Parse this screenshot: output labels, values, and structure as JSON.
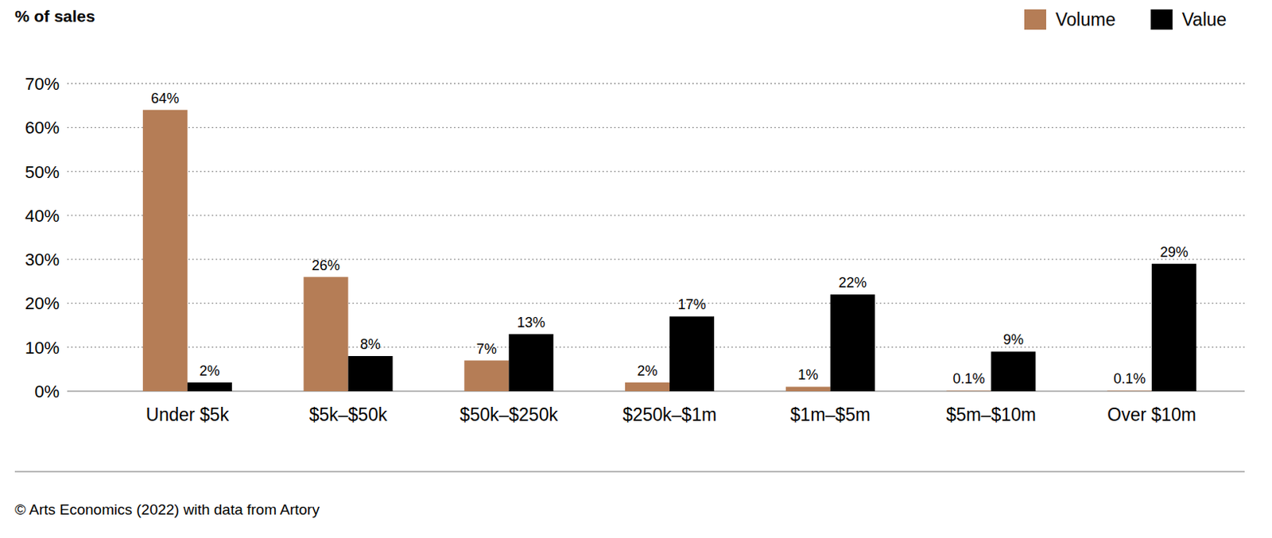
{
  "chart_data": {
    "type": "bar",
    "y_label": "% of sales",
    "source": "© Arts Economics (2022) with data from Artory",
    "categories": [
      "Under $5k",
      "$5k–$50k",
      "$50k–$250k",
      "$250k–$1m",
      "$1m–$5m",
      "$5m–$10m",
      "Over $10m"
    ],
    "series": [
      {
        "name": "Volume",
        "color": "#b57d56",
        "values": [
          64,
          26,
          7,
          2,
          1,
          0.1,
          0.1
        ],
        "value_labels": [
          "64%",
          "26%",
          "7%",
          "2%",
          "1%",
          "0.1%",
          "0.1%"
        ]
      },
      {
        "name": "Value",
        "color": "#000000",
        "values": [
          2,
          8,
          13,
          17,
          22,
          9,
          29
        ],
        "value_labels": [
          "2%",
          "8%",
          "13%",
          "17%",
          "22%",
          "9%",
          "29%"
        ]
      }
    ],
    "ylim": [
      0,
      70
    ],
    "yticks": [
      {
        "value": 0,
        "label": "0%"
      },
      {
        "value": 10,
        "label": "10%"
      },
      {
        "value": 20,
        "label": "20%"
      },
      {
        "value": 30,
        "label": "30%"
      },
      {
        "value": 40,
        "label": "40%"
      },
      {
        "value": 50,
        "label": "50%"
      },
      {
        "value": 60,
        "label": "60%"
      },
      {
        "value": 70,
        "label": "70%"
      }
    ],
    "grid": true,
    "legend": "top-right",
    "data_labels": true
  }
}
